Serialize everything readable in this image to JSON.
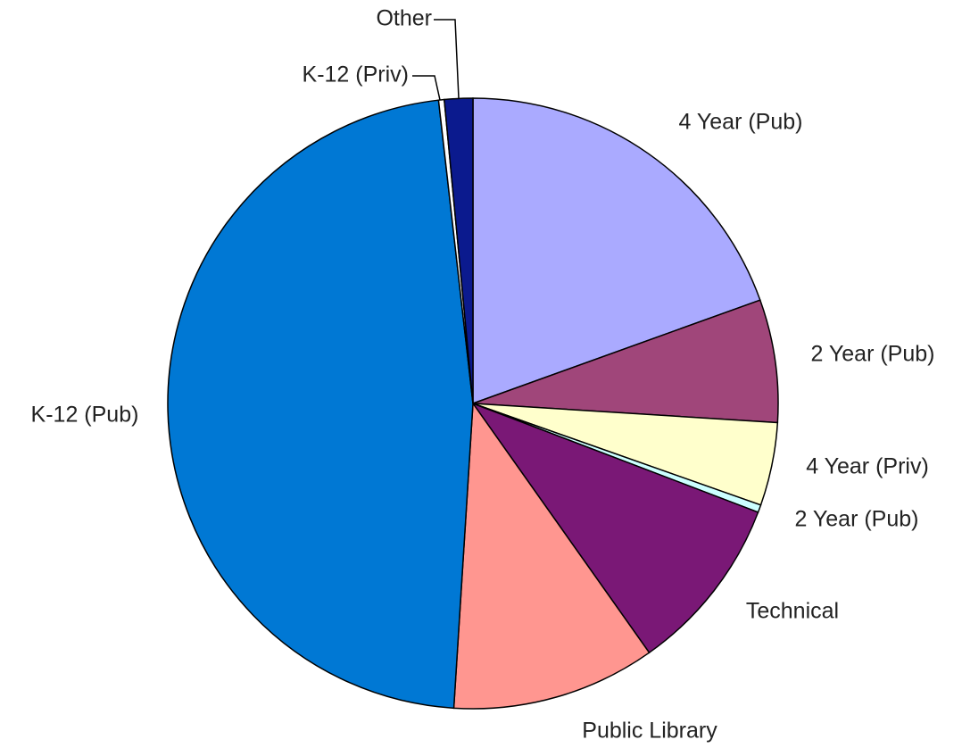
{
  "chart_data": {
    "type": "pie",
    "categories": [
      "4 Year (Pub)",
      "2 Year (Pub)",
      "4 Year (Priv)",
      "2 Year (Pub)",
      "Technical",
      "Public Library",
      "K-12 (Pub)",
      "K-12 (Priv)",
      "Other"
    ],
    "values": [
      19.5,
      6.5,
      4.4,
      0.4,
      9.4,
      10.8,
      47.2,
      0.3,
      1.5
    ],
    "colors": [
      "#aaaaff",
      "#a0467a",
      "#ffffcc",
      "#ccffff",
      "#7a1876",
      "#ff9690",
      "#0078d4",
      "#ffffff",
      "#0b1a8e"
    ]
  }
}
